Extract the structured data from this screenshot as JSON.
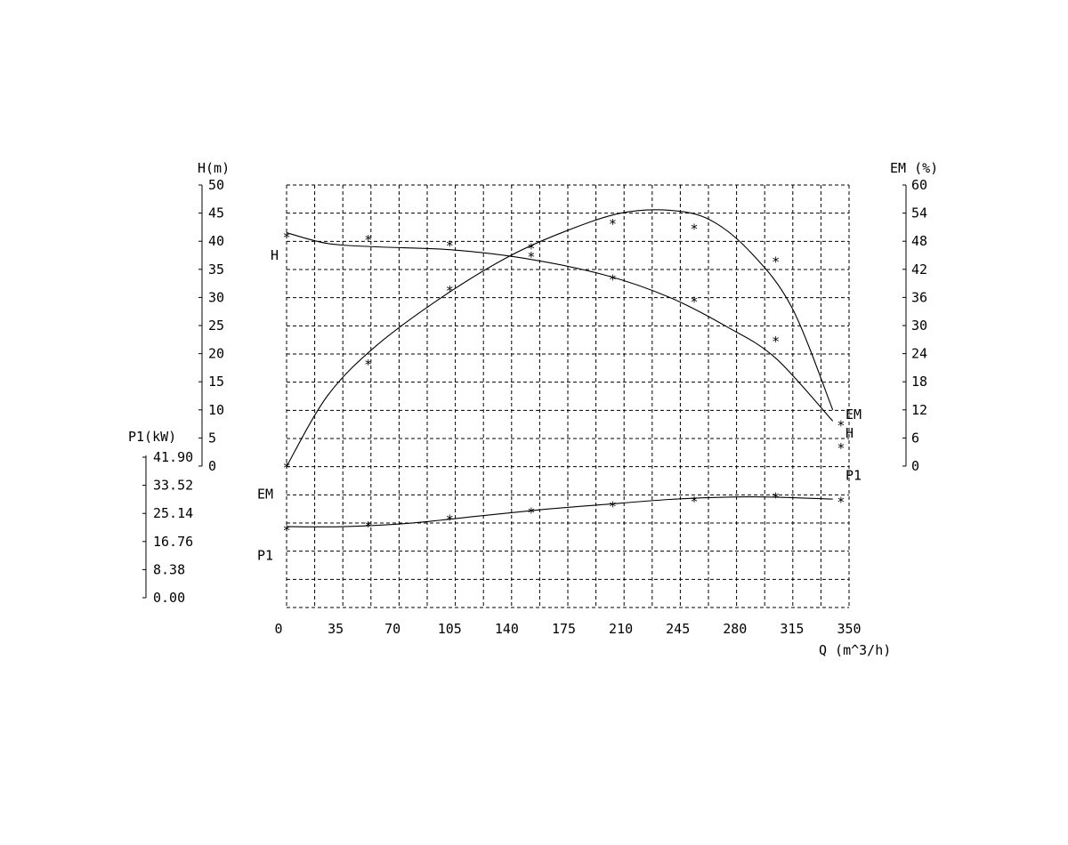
{
  "chart_data": {
    "type": "line",
    "x_axis": {
      "label": "Q (m^3/h)",
      "range": [
        0,
        350
      ],
      "ticks": [
        "0",
        "35",
        "70",
        "105",
        "140",
        "175",
        "210",
        "245",
        "280",
        "315",
        "350"
      ]
    },
    "axes": {
      "H": {
        "label": "H(m)",
        "range": [
          0,
          50
        ],
        "ticks": [
          "0",
          "5",
          "10",
          "15",
          "20",
          "25",
          "30",
          "35",
          "40",
          "45",
          "50"
        ]
      },
      "EM": {
        "label": "EM (%)",
        "range": [
          0,
          60
        ],
        "ticks": [
          "0",
          "6",
          "12",
          "18",
          "24",
          "30",
          "36",
          "42",
          "48",
          "54",
          "60"
        ]
      },
      "P1": {
        "label": "P1(kW)",
        "range": [
          0,
          41.9
        ],
        "ticks": [
          "0.00",
          "8.38",
          "16.76",
          "25.14",
          "33.52",
          "41.90"
        ]
      }
    },
    "grid": true,
    "series": [
      {
        "name": "H",
        "axis": "H",
        "points": [
          [
            5,
            41
          ],
          [
            55,
            40.5
          ],
          [
            105,
            39.5
          ],
          [
            155,
            39
          ],
          [
            205,
            33.5
          ],
          [
            255,
            29.5
          ],
          [
            305,
            22.5
          ],
          [
            345,
            3.5
          ]
        ],
        "curve": [
          [
            5,
            41.5
          ],
          [
            30,
            39.6
          ],
          [
            60,
            39.0
          ],
          [
            105,
            38.5
          ],
          [
            150,
            37.0
          ],
          [
            200,
            34.0
          ],
          [
            240,
            30.0
          ],
          [
            275,
            24.8
          ],
          [
            305,
            19.2
          ],
          [
            340,
            8.0
          ]
        ]
      },
      {
        "name": "EM",
        "axis": "EM",
        "points": [
          [
            5,
            0
          ],
          [
            55,
            22
          ],
          [
            105,
            37.8
          ],
          [
            155,
            45
          ],
          [
            205,
            52
          ],
          [
            255,
            51
          ],
          [
            305,
            44
          ],
          [
            345,
            9
          ]
        ],
        "curve": [
          [
            5,
            0
          ],
          [
            30,
            15.0
          ],
          [
            60,
            25.7
          ],
          [
            100,
            36.0
          ],
          [
            140,
            44.5
          ],
          [
            175,
            50.0
          ],
          [
            210,
            54.0
          ],
          [
            240,
            54.6
          ],
          [
            265,
            52.5
          ],
          [
            290,
            45.5
          ],
          [
            315,
            33.8
          ],
          [
            340,
            12.0
          ]
        ]
      },
      {
        "name": "P1",
        "axis": "P1",
        "points": [
          [
            5,
            20.5
          ],
          [
            55,
            21.8
          ],
          [
            105,
            23.7
          ],
          [
            155,
            25.8
          ],
          [
            205,
            27.7
          ],
          [
            255,
            29.2
          ],
          [
            305,
            30.3
          ],
          [
            345,
            29.1
          ]
        ],
        "curve": [
          [
            5,
            21.2
          ],
          [
            40,
            21.2
          ],
          [
            80,
            22.2
          ],
          [
            120,
            24.2
          ],
          [
            160,
            26.2
          ],
          [
            200,
            27.8
          ],
          [
            240,
            29.3
          ],
          [
            275,
            30.0
          ],
          [
            305,
            30.0
          ],
          [
            340,
            29.4
          ]
        ]
      }
    ],
    "curve_labels": [
      {
        "text": "H",
        "side": "left",
        "axis": "H",
        "value": 37.5
      },
      {
        "text": "EM",
        "side": "left",
        "axis": "EM",
        "value": -6
      },
      {
        "text": "P1",
        "side": "left",
        "axis": "P1",
        "value": 12.6
      },
      {
        "text": "EM",
        "side": "right",
        "axis": "EM",
        "value": 11
      },
      {
        "text": "H",
        "side": "right",
        "axis": "EM",
        "value": 7
      },
      {
        "text": "P1",
        "side": "right",
        "axis": "EM",
        "value": -2
      }
    ]
  }
}
